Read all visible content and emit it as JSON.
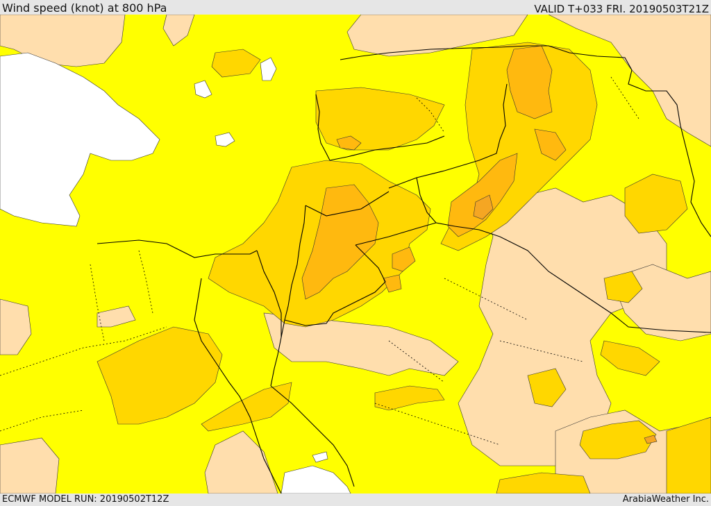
{
  "header": {
    "title": "Wind speed (knot) at 800 hPa",
    "valid_time": "VALID T+033 FRI. 20190503T21Z"
  },
  "footer": {
    "model_run": "ECMWF MODEL RUN: 20190502T12Z",
    "provider": "ArabiaWeather Inc."
  },
  "map": {
    "colors": {
      "sea": "#ffffff",
      "band_lowest": "#ffdead",
      "band_low": "#ffff00",
      "band_mid": "#ffd700",
      "band_high": "#ffb90f",
      "band_highest": "#f5a623",
      "borders": "#000000"
    }
  }
}
